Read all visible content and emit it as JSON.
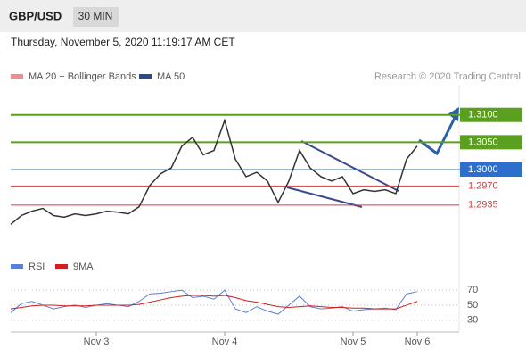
{
  "header": {
    "symbol": "GBP/USD",
    "interval": "30 MIN",
    "timestamp": "Thursday, November 5, 2020 11:19:17 AM CET"
  },
  "chart_data": [
    {
      "type": "line",
      "legend": [
        {
          "name": "MA 20 + Bollinger Bands",
          "color": "#f08c8c"
        },
        {
          "name": "MA 50",
          "color": "#2b4a8c"
        }
      ],
      "credit": "Research © 2020 Trading Central",
      "color": "#333333",
      "values": [
        1.29,
        1.2916,
        1.2924,
        1.2929,
        1.2916,
        1.2913,
        1.2919,
        1.2916,
        1.2919,
        1.2924,
        1.2922,
        1.2919,
        1.2932,
        1.2971,
        1.2992,
        1.3003,
        1.3043,
        1.3059,
        1.3027,
        1.3035,
        1.309,
        1.3019,
        1.2987,
        1.2995,
        1.2979,
        1.294,
        1.2979,
        1.3035,
        1.3003,
        1.2987,
        1.2979,
        1.2987,
        1.2956,
        1.2963,
        1.296,
        1.2963,
        1.2956,
        1.3019,
        1.3043
      ],
      "ylim": [
        1.2845,
        1.3155
      ],
      "levels": [
        {
          "value": 1.31,
          "label": "1.3100",
          "color": "#5aa01e",
          "filled": true
        },
        {
          "value": 1.305,
          "label": "1.3050",
          "color": "#5aa01e",
          "filled": true
        },
        {
          "value": 1.3,
          "label": "1.3000",
          "color": "#2c6fcd",
          "filled": true
        },
        {
          "value": 1.297,
          "label": "1.2970",
          "color": "#d23c3c",
          "filled": false
        },
        {
          "value": 1.2935,
          "label": "1.2935",
          "color": "#d23c3c",
          "filled": false
        }
      ]
    },
    {
      "type": "line",
      "categories": [
        null,
        null,
        null,
        null,
        null,
        null,
        null,
        null,
        "Nov 3",
        null,
        null,
        null,
        null,
        null,
        null,
        null,
        null,
        null,
        null,
        null,
        "Nov 4",
        null,
        null,
        null,
        null,
        null,
        null,
        null,
        null,
        null,
        null,
        null,
        "Nov 5",
        null,
        null,
        null,
        null,
        null,
        "Nov 6"
      ],
      "series": [
        {
          "name": "RSI",
          "color": "#5b7fd6",
          "values": [
            40,
            52,
            55,
            50,
            45,
            48,
            50,
            47,
            50,
            52,
            50,
            48,
            55,
            65,
            66,
            68,
            70,
            60,
            62,
            58,
            70,
            45,
            40,
            48,
            42,
            38,
            50,
            62,
            48,
            45,
            46,
            48,
            42,
            44,
            45,
            46,
            44,
            65,
            68
          ]
        },
        {
          "name": "9MA",
          "color": "#d21e1e",
          "values": [
            45,
            47,
            49,
            50,
            50,
            49,
            49,
            49,
            50,
            50,
            50,
            50,
            51,
            54,
            57,
            60,
            62,
            63,
            63,
            62,
            63,
            60,
            56,
            54,
            51,
            48,
            47,
            48,
            49,
            48,
            47,
            47,
            46,
            46,
            45,
            45,
            45,
            50,
            55
          ]
        }
      ],
      "ylim": [
        19,
        88
      ],
      "yticks": [
        30,
        50,
        70
      ],
      "grid": true
    }
  ]
}
